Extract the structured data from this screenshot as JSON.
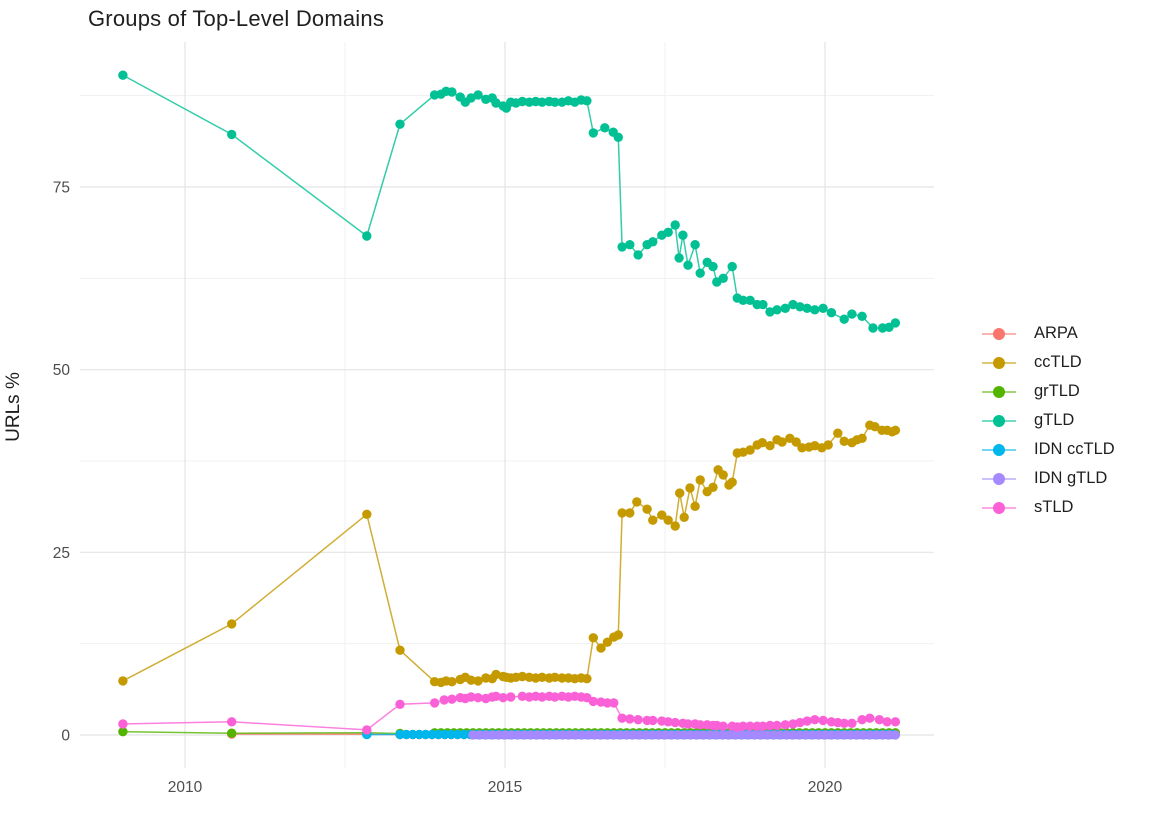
{
  "chart_data": {
    "type": "line",
    "title": "Groups of Top-Level Domains",
    "ylabel": "URLs %",
    "xlabel": "",
    "grid": true,
    "legend_position": "right",
    "x_ticks": [
      2010,
      2015,
      2020
    ],
    "x_minor_ticks": [
      2012.5,
      2017.5
    ],
    "y_ticks": [
      0,
      25,
      50,
      75
    ],
    "y_minor_ticks": [
      12.5,
      37.5,
      62.5,
      87.5
    ],
    "x_range_years": [
      2008.4,
      2021.7
    ],
    "y_range": [
      -4.5,
      94.8
    ],
    "colors": {
      "grid_major": "#e4e4e4",
      "grid_minor": "#f1f1f1",
      "tick_label": "#4d4d4d",
      "text": "#1f1f1f",
      "background": "#ffffff"
    },
    "series": [
      {
        "name": "ARPA",
        "color": "#F8766D",
        "points": [
          [
            2010.73,
            0.12
          ],
          [
            2012.84,
            0.1
          ]
        ],
        "runs": [
          {
            "from": 2013.36,
            "to": 2021.1,
            "step": 0.1,
            "value": 0.06
          }
        ]
      },
      {
        "name": "ccTLD",
        "color": "#C49A00",
        "points": [
          [
            2009.03,
            7.4
          ],
          [
            2010.73,
            15.2
          ],
          [
            2012.84,
            30.2
          ],
          [
            2013.36,
            11.6
          ],
          [
            2013.9,
            7.3
          ],
          [
            2014.0,
            7.2
          ],
          [
            2014.08,
            7.4
          ],
          [
            2014.17,
            7.3
          ],
          [
            2014.3,
            7.6
          ],
          [
            2014.38,
            7.9
          ],
          [
            2014.47,
            7.5
          ],
          [
            2014.58,
            7.4
          ],
          [
            2014.7,
            7.8
          ],
          [
            2014.8,
            7.7
          ],
          [
            2014.86,
            8.3
          ],
          [
            2014.97,
            8.0
          ],
          [
            2015.02,
            7.9
          ],
          [
            2015.09,
            7.8
          ],
          [
            2015.17,
            7.9
          ],
          [
            2015.27,
            8.0
          ],
          [
            2015.38,
            7.9
          ],
          [
            2015.48,
            7.8
          ],
          [
            2015.58,
            7.9
          ],
          [
            2015.69,
            7.8
          ],
          [
            2015.78,
            7.9
          ],
          [
            2015.89,
            7.8
          ],
          [
            2015.99,
            7.8
          ],
          [
            2016.09,
            7.7
          ],
          [
            2016.19,
            7.8
          ],
          [
            2016.28,
            7.7
          ],
          [
            2016.38,
            13.3
          ],
          [
            2016.5,
            11.9
          ],
          [
            2016.6,
            12.7
          ],
          [
            2016.7,
            13.4
          ],
          [
            2016.77,
            13.7
          ],
          [
            2016.83,
            30.4
          ],
          [
            2016.95,
            30.4
          ],
          [
            2017.06,
            31.9
          ],
          [
            2017.22,
            30.9
          ],
          [
            2017.31,
            29.4
          ],
          [
            2017.45,
            30.1
          ],
          [
            2017.55,
            29.4
          ],
          [
            2017.66,
            28.6
          ],
          [
            2017.73,
            33.1
          ],
          [
            2017.8,
            29.8
          ],
          [
            2017.89,
            33.8
          ],
          [
            2017.97,
            31.3
          ],
          [
            2018.05,
            34.9
          ],
          [
            2018.16,
            33.3
          ],
          [
            2018.25,
            33.9
          ],
          [
            2018.33,
            36.3
          ],
          [
            2018.41,
            35.6
          ],
          [
            2018.5,
            34.2
          ],
          [
            2018.55,
            34.6
          ],
          [
            2018.63,
            38.6
          ],
          [
            2018.72,
            38.7
          ],
          [
            2018.83,
            39.0
          ],
          [
            2018.94,
            39.7
          ],
          [
            2019.02,
            40.0
          ],
          [
            2019.14,
            39.6
          ],
          [
            2019.25,
            40.4
          ],
          [
            2019.33,
            40.1
          ],
          [
            2019.45,
            40.6
          ],
          [
            2019.55,
            40.1
          ],
          [
            2019.64,
            39.3
          ],
          [
            2019.75,
            39.4
          ],
          [
            2019.84,
            39.6
          ],
          [
            2019.95,
            39.3
          ],
          [
            2020.05,
            39.7
          ],
          [
            2020.2,
            41.3
          ],
          [
            2020.3,
            40.2
          ],
          [
            2020.42,
            40.0
          ],
          [
            2020.5,
            40.4
          ],
          [
            2020.58,
            40.6
          ],
          [
            2020.7,
            42.4
          ],
          [
            2020.78,
            42.2
          ],
          [
            2020.89,
            41.7
          ],
          [
            2020.97,
            41.7
          ],
          [
            2021.05,
            41.5
          ],
          [
            2021.1,
            41.7
          ]
        ]
      },
      {
        "name": "grTLD",
        "color": "#53B400",
        "points": [
          [
            2009.03,
            0.45
          ],
          [
            2010.73,
            0.25
          ],
          [
            2012.84,
            0.3
          ],
          [
            2013.36,
            0.2
          ]
        ],
        "runs": [
          {
            "from": 2013.9,
            "to": 2021.1,
            "step": 0.1,
            "value": 0.3
          }
        ]
      },
      {
        "name": "gTLD",
        "color": "#00C094",
        "points": [
          [
            2009.03,
            90.3
          ],
          [
            2010.73,
            82.2
          ],
          [
            2012.84,
            68.3
          ],
          [
            2013.36,
            83.6
          ],
          [
            2013.9,
            87.6
          ],
          [
            2014.0,
            87.7
          ],
          [
            2014.08,
            88.1
          ],
          [
            2014.17,
            88.0
          ],
          [
            2014.3,
            87.3
          ],
          [
            2014.38,
            86.6
          ],
          [
            2014.47,
            87.2
          ],
          [
            2014.58,
            87.6
          ],
          [
            2014.7,
            87.0
          ],
          [
            2014.8,
            87.2
          ],
          [
            2014.86,
            86.5
          ],
          [
            2014.97,
            86.1
          ],
          [
            2015.02,
            85.8
          ],
          [
            2015.09,
            86.6
          ],
          [
            2015.17,
            86.5
          ],
          [
            2015.27,
            86.7
          ],
          [
            2015.38,
            86.6
          ],
          [
            2015.48,
            86.7
          ],
          [
            2015.58,
            86.6
          ],
          [
            2015.69,
            86.7
          ],
          [
            2015.78,
            86.6
          ],
          [
            2015.89,
            86.6
          ],
          [
            2015.99,
            86.8
          ],
          [
            2016.09,
            86.6
          ],
          [
            2016.19,
            86.9
          ],
          [
            2016.28,
            86.8
          ],
          [
            2016.38,
            82.4
          ],
          [
            2016.56,
            83.1
          ],
          [
            2016.69,
            82.5
          ],
          [
            2016.77,
            81.8
          ],
          [
            2016.83,
            66.8
          ],
          [
            2016.95,
            67.1
          ],
          [
            2017.08,
            65.7
          ],
          [
            2017.22,
            67.1
          ],
          [
            2017.31,
            67.5
          ],
          [
            2017.45,
            68.4
          ],
          [
            2017.55,
            68.8
          ],
          [
            2017.66,
            69.8
          ],
          [
            2017.72,
            65.3
          ],
          [
            2017.78,
            68.4
          ],
          [
            2017.86,
            64.3
          ],
          [
            2017.97,
            67.1
          ],
          [
            2018.05,
            63.2
          ],
          [
            2018.16,
            64.7
          ],
          [
            2018.25,
            64.1
          ],
          [
            2018.31,
            62.0
          ],
          [
            2018.41,
            62.5
          ],
          [
            2018.55,
            64.1
          ],
          [
            2018.63,
            59.8
          ],
          [
            2018.72,
            59.5
          ],
          [
            2018.83,
            59.5
          ],
          [
            2018.94,
            58.9
          ],
          [
            2019.03,
            58.9
          ],
          [
            2019.14,
            57.9
          ],
          [
            2019.25,
            58.2
          ],
          [
            2019.38,
            58.4
          ],
          [
            2019.5,
            58.9
          ],
          [
            2019.61,
            58.6
          ],
          [
            2019.72,
            58.4
          ],
          [
            2019.84,
            58.2
          ],
          [
            2019.97,
            58.4
          ],
          [
            2020.1,
            57.8
          ],
          [
            2020.3,
            56.9
          ],
          [
            2020.42,
            57.6
          ],
          [
            2020.58,
            57.3
          ],
          [
            2020.75,
            55.7
          ],
          [
            2020.9,
            55.7
          ],
          [
            2021.0,
            55.8
          ],
          [
            2021.1,
            56.4
          ]
        ]
      },
      {
        "name": "IDN ccTLD",
        "color": "#00B6EB",
        "points": [
          [
            2012.84,
            0.06
          ]
        ],
        "runs": [
          {
            "from": 2013.36,
            "to": 2021.1,
            "step": 0.1,
            "value": 0.08
          }
        ]
      },
      {
        "name": "IDN gTLD",
        "color": "#A58AFF",
        "points": [],
        "runs": [
          {
            "from": 2014.5,
            "to": 2021.1,
            "step": 0.1,
            "value": 0.02
          }
        ]
      },
      {
        "name": "sTLD",
        "color": "#FB61D7",
        "points": [
          [
            2009.03,
            1.5
          ],
          [
            2010.73,
            1.8
          ],
          [
            2012.84,
            0.7
          ],
          [
            2013.36,
            4.2
          ],
          [
            2013.9,
            4.4
          ],
          [
            2014.05,
            4.8
          ],
          [
            2014.17,
            4.9
          ],
          [
            2014.3,
            5.1
          ],
          [
            2014.38,
            5.0
          ],
          [
            2014.47,
            5.2
          ],
          [
            2014.58,
            5.1
          ],
          [
            2014.7,
            5.0
          ],
          [
            2014.8,
            5.2
          ],
          [
            2014.86,
            5.3
          ],
          [
            2014.97,
            5.1
          ],
          [
            2015.09,
            5.2
          ],
          [
            2015.27,
            5.3
          ],
          [
            2015.38,
            5.2
          ],
          [
            2015.48,
            5.3
          ],
          [
            2015.58,
            5.2
          ],
          [
            2015.69,
            5.3
          ],
          [
            2015.78,
            5.2
          ],
          [
            2015.89,
            5.3
          ],
          [
            2015.99,
            5.2
          ],
          [
            2016.09,
            5.3
          ],
          [
            2016.19,
            5.2
          ],
          [
            2016.28,
            5.1
          ],
          [
            2016.38,
            4.6
          ],
          [
            2016.5,
            4.5
          ],
          [
            2016.6,
            4.4
          ],
          [
            2016.7,
            4.4
          ],
          [
            2016.83,
            2.3
          ],
          [
            2016.95,
            2.2
          ],
          [
            2017.08,
            2.1
          ],
          [
            2017.22,
            2.0
          ],
          [
            2017.31,
            2.0
          ],
          [
            2017.45,
            1.9
          ],
          [
            2017.55,
            1.8
          ],
          [
            2017.66,
            1.7
          ],
          [
            2017.78,
            1.6
          ],
          [
            2017.86,
            1.5
          ],
          [
            2017.97,
            1.5
          ],
          [
            2018.05,
            1.4
          ],
          [
            2018.16,
            1.4
          ],
          [
            2018.25,
            1.3
          ],
          [
            2018.31,
            1.3
          ],
          [
            2018.41,
            1.2
          ],
          [
            2018.55,
            1.2
          ],
          [
            2018.63,
            1.1
          ],
          [
            2018.72,
            1.2
          ],
          [
            2018.83,
            1.2
          ],
          [
            2018.94,
            1.2
          ],
          [
            2019.03,
            1.2
          ],
          [
            2019.14,
            1.3
          ],
          [
            2019.25,
            1.3
          ],
          [
            2019.38,
            1.4
          ],
          [
            2019.5,
            1.5
          ],
          [
            2019.61,
            1.7
          ],
          [
            2019.72,
            1.9
          ],
          [
            2019.84,
            2.1
          ],
          [
            2019.97,
            2.0
          ],
          [
            2020.1,
            1.8
          ],
          [
            2020.2,
            1.7
          ],
          [
            2020.3,
            1.6
          ],
          [
            2020.42,
            1.6
          ],
          [
            2020.58,
            2.1
          ],
          [
            2020.7,
            2.3
          ],
          [
            2020.85,
            2.1
          ],
          [
            2020.97,
            1.8
          ],
          [
            2021.1,
            1.8
          ]
        ]
      }
    ]
  }
}
